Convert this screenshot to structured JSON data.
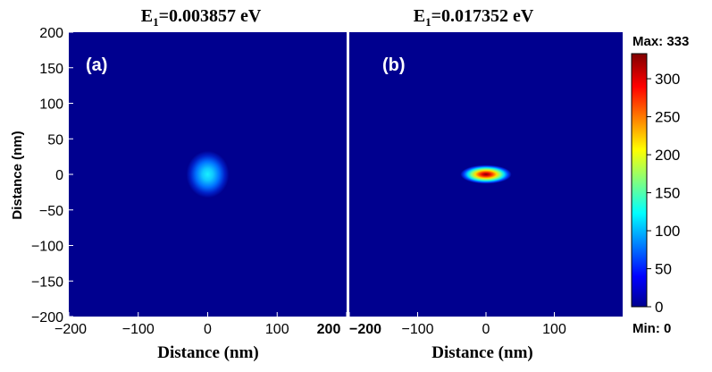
{
  "chart_data": [
    {
      "type": "heatmap",
      "panel_label": "(a)",
      "title_prefix": "E",
      "title_subscript": "1",
      "title_value": "=0.003857 eV",
      "xlabel": "",
      "ylabel": "Distance (nm)",
      "xlim": [
        -200,
        200
      ],
      "ylim": [
        -200,
        200
      ],
      "x_ticks": [
        -200,
        -100,
        0,
        100,
        200
      ],
      "y_ticks": [
        200,
        150,
        100,
        50,
        0,
        -50,
        -100,
        -150,
        -200
      ],
      "peak": {
        "x": 0,
        "y": 0,
        "value": 100,
        "sigma_x_nm": 14,
        "sigma_y_nm": 15
      }
    },
    {
      "type": "heatmap",
      "panel_label": "(b)",
      "title_prefix": "E",
      "title_subscript": "1",
      "title_value": "=0.017352 eV",
      "xlabel": "",
      "ylabel": "",
      "xlim": [
        -200,
        200
      ],
      "ylim": [
        -200,
        200
      ],
      "x_ticks": [
        -200,
        -100,
        0,
        100
      ],
      "peak": {
        "x": 0,
        "y": 0,
        "value": 333,
        "sigma_x_nm": 17,
        "sigma_y_nm": 6
      }
    }
  ],
  "shared_xlabel": "Distance (nm)",
  "colorbar": {
    "max_label": "Max: 333",
    "min_label": "Min: 0",
    "ticks": [
      300,
      250,
      200,
      150,
      100,
      50,
      0
    ],
    "range": [
      0,
      333
    ]
  },
  "colormap": [
    "#00008f",
    "#0000ff",
    "#00ffff",
    "#ffff00",
    "#ff0000",
    "#800000"
  ],
  "background_color": "#00008f"
}
